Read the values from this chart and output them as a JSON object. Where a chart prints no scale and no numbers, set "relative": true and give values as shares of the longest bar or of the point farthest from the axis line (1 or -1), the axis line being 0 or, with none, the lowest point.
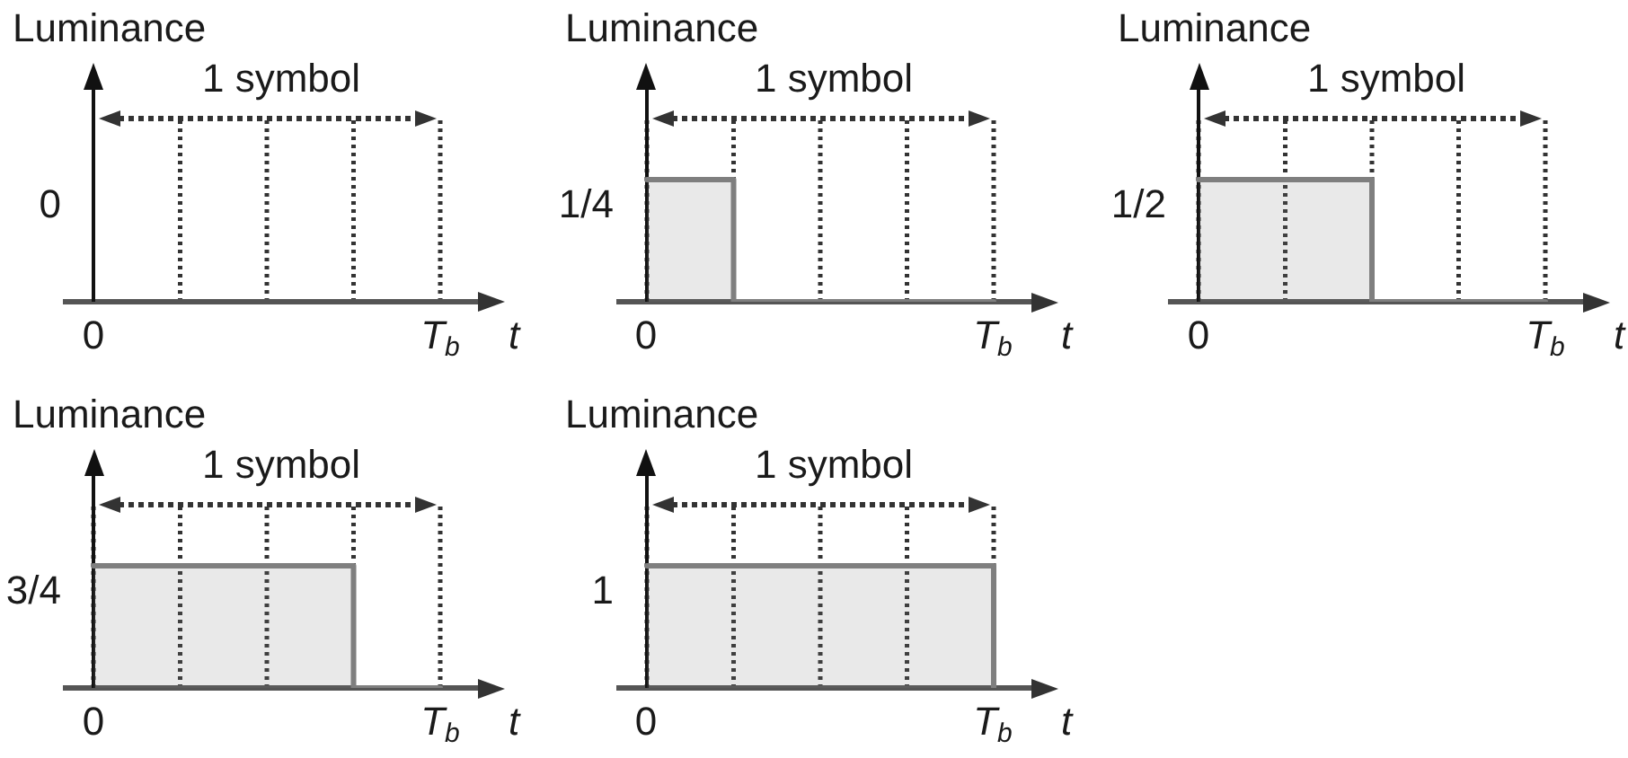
{
  "chart_data": [
    {
      "type": "other",
      "ylabel": "Luminance",
      "xlabel": "t",
      "categories": [
        "0",
        null,
        null,
        null,
        "T$_{b}$"
      ],
      "annotations": [
        "1 symbol",
        "0"
      ]
    },
    {
      "type": "step",
      "ylabel": "Luminance",
      "xlabel": "t",
      "categories": [
        "0",
        null,
        null,
        null,
        "T$_{b}$"
      ],
      "values": [
        1,
        0,
        0,
        0,
        0
      ],
      "relative": true,
      "color": "#7f7f7f",
      "grid": "x",
      "annotations": [
        "1 symbol",
        "1/4"
      ]
    },
    {
      "type": "step",
      "ylabel": "Luminance",
      "xlabel": "t",
      "categories": [
        "0",
        null,
        null,
        null,
        "T$_{b}$"
      ],
      "values": [
        1,
        1,
        0,
        0,
        0
      ],
      "relative": true,
      "color": "#7f7f7f",
      "grid": "x",
      "annotations": [
        "1 symbol",
        "1/2"
      ]
    },
    {
      "type": "step",
      "ylabel": "Luminance",
      "xlabel": "t",
      "categories": [
        "0",
        null,
        null,
        null,
        "T$_{b}$"
      ],
      "values": [
        1,
        1,
        1,
        0,
        0
      ],
      "relative": true,
      "color": "#7f7f7f",
      "grid": "x",
      "annotations": [
        "1 symbol",
        "3/4"
      ]
    },
    {
      "type": "step",
      "ylabel": "Luminance",
      "xlabel": "t",
      "categories": [
        "0",
        null,
        null,
        null,
        "T$_{b}$"
      ],
      "values": [
        1,
        1,
        1,
        1,
        0
      ],
      "relative": true,
      "color": "#7f7f7f",
      "grid": "x",
      "annotations": [
        "1 symbol",
        "1"
      ]
    }
  ]
}
